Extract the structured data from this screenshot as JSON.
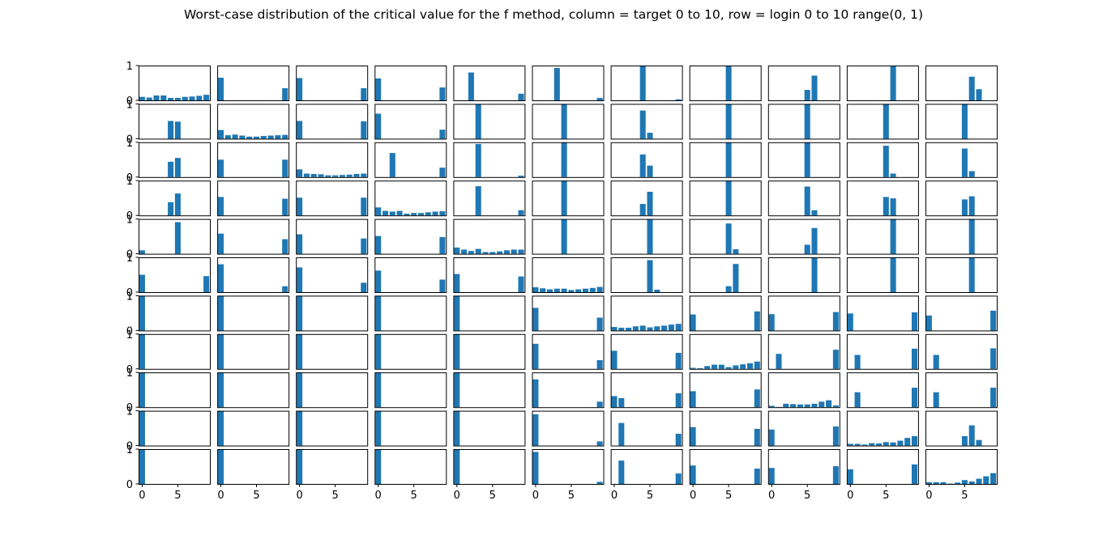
{
  "title": "Worst-case distribution of the critical value for the f method, column = target 0 to 10, row = login 0 to 10 range(0, 1)",
  "chart_data": {
    "type": "bar",
    "layout": "small-multiples grid (11 rows x 11 columns)",
    "bar_color": "#1f77b4",
    "frame_color": "#000000",
    "x_categories": [
      0,
      1,
      2,
      3,
      4,
      5,
      6,
      7,
      8,
      9
    ],
    "x_ticks": [
      0,
      5
    ],
    "y_ticks": [
      0,
      1
    ],
    "ylim": [
      0,
      1
    ],
    "xlim": [
      -0.5,
      9.5
    ],
    "row_label": "login 0 to 10",
    "column_label": "target 0 to 10",
    "panels": [
      [
        [
          0.1,
          0.08,
          0.14,
          0.14,
          0.07,
          0.07,
          0.1,
          0.11,
          0.13,
          0.16
        ],
        [
          0.65,
          0,
          0,
          0,
          0,
          0,
          0,
          0,
          0,
          0.35
        ],
        [
          0.64,
          0,
          0,
          0,
          0,
          0,
          0,
          0,
          0,
          0.35
        ],
        [
          0.63,
          0,
          0,
          0,
          0,
          0,
          0,
          0,
          0,
          0.37
        ],
        [
          0,
          0,
          0.8,
          0,
          0,
          0,
          0,
          0,
          0,
          0.19
        ],
        [
          0,
          0,
          0,
          0.93,
          0,
          0,
          0,
          0,
          0,
          0.07
        ],
        [
          0,
          0,
          0,
          0,
          1.0,
          0,
          0,
          0,
          0,
          0.03
        ],
        [
          0,
          0,
          0,
          0,
          0,
          1.0,
          0,
          0,
          0,
          0
        ],
        [
          0,
          0,
          0,
          0,
          0,
          0.3,
          0.71,
          0,
          0,
          0
        ],
        [
          0,
          0,
          0,
          0,
          0,
          0,
          1.0,
          0,
          0,
          0
        ],
        [
          0,
          0,
          0,
          0,
          0,
          0,
          0.68,
          0.32,
          0,
          0
        ]
      ],
      [
        [
          0,
          0,
          0,
          0,
          0.51,
          0.49,
          0,
          0,
          0,
          0
        ],
        [
          0.25,
          0.1,
          0.12,
          0.09,
          0.06,
          0.06,
          0.08,
          0.09,
          0.1,
          0.11
        ],
        [
          0.51,
          0,
          0,
          0,
          0,
          0,
          0,
          0,
          0,
          0.5
        ],
        [
          0.72,
          0,
          0,
          0,
          0,
          0,
          0,
          0,
          0,
          0.26
        ],
        [
          0,
          0,
          0,
          1.0,
          0,
          0,
          0,
          0,
          0,
          0
        ],
        [
          0,
          0,
          0,
          0,
          1.0,
          0,
          0,
          0,
          0,
          0
        ],
        [
          0,
          0,
          0,
          0,
          0.81,
          0.17,
          0,
          0,
          0,
          0
        ],
        [
          0,
          0,
          0,
          0,
          0,
          1.0,
          0,
          0,
          0,
          0
        ],
        [
          0,
          0,
          0,
          0,
          0,
          1.0,
          0,
          0,
          0,
          0
        ],
        [
          0,
          0,
          0,
          0,
          0,
          1.0,
          0,
          0,
          0,
          0
        ],
        [
          0,
          0,
          0,
          0,
          0,
          1.0,
          0,
          0,
          0,
          0
        ]
      ],
      [
        [
          0,
          0,
          0,
          0,
          0.44,
          0.55,
          0,
          0,
          0,
          0
        ],
        [
          0.5,
          0,
          0,
          0,
          0,
          0,
          0,
          0,
          0,
          0.5
        ],
        [
          0.22,
          0.1,
          0.09,
          0.08,
          0.05,
          0.05,
          0.06,
          0.07,
          0.09,
          0.1
        ],
        [
          0,
          0,
          0.69,
          0,
          0,
          0,
          0,
          0,
          0,
          0.27
        ],
        [
          0,
          0,
          0,
          0.95,
          0,
          0,
          0,
          0,
          0,
          0.04
        ],
        [
          0,
          0,
          0,
          0,
          1.0,
          0,
          0,
          0,
          0,
          0
        ],
        [
          0,
          0,
          0,
          0,
          0.65,
          0.33,
          0,
          0,
          0,
          0
        ],
        [
          0,
          0,
          0,
          0,
          0,
          1.0,
          0,
          0,
          0,
          0
        ],
        [
          0,
          0,
          0,
          0,
          0,
          1.0,
          0,
          0,
          0,
          0
        ],
        [
          0,
          0,
          0,
          0,
          0,
          0.9,
          0.1,
          0,
          0,
          0
        ],
        [
          0,
          0,
          0,
          0,
          0,
          0.82,
          0.17,
          0,
          0,
          0
        ]
      ],
      [
        [
          0,
          0,
          0,
          0,
          0.38,
          0.63,
          0,
          0,
          0,
          0
        ],
        [
          0.53,
          0,
          0,
          0,
          0,
          0,
          0,
          0,
          0,
          0.48
        ],
        [
          0.51,
          0,
          0,
          0,
          0,
          0,
          0,
          0,
          0,
          0.51
        ],
        [
          0.23,
          0.13,
          0.11,
          0.13,
          0.05,
          0.07,
          0.07,
          0.09,
          0.11,
          0.12
        ],
        [
          0,
          0,
          0,
          0.84,
          0,
          0,
          0,
          0,
          0,
          0.15
        ],
        [
          0,
          0,
          0,
          0,
          1.0,
          0,
          0,
          0,
          0,
          0
        ],
        [
          0,
          0,
          0,
          0,
          0.33,
          0.68,
          0,
          0,
          0,
          0
        ],
        [
          0,
          0,
          0,
          0,
          0,
          1.0,
          0,
          0,
          0,
          0
        ],
        [
          0,
          0,
          0,
          0,
          0,
          0.83,
          0.15,
          0,
          0,
          0
        ],
        [
          0,
          0,
          0,
          0,
          0,
          0.53,
          0.49,
          0,
          0,
          0
        ],
        [
          0,
          0,
          0,
          0,
          0,
          0.46,
          0.55,
          0,
          0,
          0
        ]
      ],
      [
        [
          0.1,
          0,
          0,
          0,
          0,
          0.91,
          0,
          0,
          0,
          0
        ],
        [
          0.58,
          0,
          0,
          0,
          0,
          0,
          0,
          0,
          0,
          0.42
        ],
        [
          0.56,
          0,
          0,
          0,
          0,
          0,
          0,
          0,
          0,
          0.44
        ],
        [
          0.51,
          0,
          0,
          0,
          0,
          0,
          0,
          0,
          0,
          0.48
        ],
        [
          0.18,
          0.12,
          0.08,
          0.14,
          0.05,
          0.05,
          0.07,
          0.1,
          0.12,
          0.12
        ],
        [
          0,
          0,
          0,
          0,
          1.0,
          0,
          0,
          0,
          0,
          0
        ],
        [
          0,
          0,
          0,
          0,
          0,
          1.0,
          0,
          0,
          0,
          0
        ],
        [
          0,
          0,
          0,
          0,
          0,
          0.87,
          0.13,
          0,
          0,
          0
        ],
        [
          0,
          0,
          0,
          0,
          0,
          0.26,
          0.74,
          0,
          0,
          0
        ],
        [
          0,
          0,
          0,
          0,
          0,
          0,
          1.0,
          0,
          0,
          0
        ],
        [
          0,
          0,
          0,
          0,
          0,
          0,
          1.0,
          0,
          0,
          0
        ]
      ],
      [
        [
          0.5,
          0,
          0,
          0,
          0,
          0,
          0,
          0,
          0,
          0.46
        ],
        [
          0.8,
          0,
          0,
          0,
          0,
          0,
          0,
          0,
          0,
          0.17
        ],
        [
          0.71,
          0,
          0,
          0,
          0,
          0,
          0,
          0,
          0,
          0.27
        ],
        [
          0.62,
          0,
          0,
          0,
          0,
          0,
          0,
          0,
          0,
          0.36
        ],
        [
          0.52,
          0,
          0,
          0,
          0,
          0,
          0,
          0,
          0,
          0.45
        ],
        [
          0.14,
          0.11,
          0.08,
          0.1,
          0.1,
          0.06,
          0.08,
          0.1,
          0.12,
          0.15
        ],
        [
          0,
          0,
          0,
          0,
          0,
          0.92,
          0.07,
          0,
          0,
          0
        ],
        [
          0,
          0,
          0,
          0,
          0,
          0.17,
          0.81,
          0,
          0,
          0
        ],
        [
          0,
          0,
          0,
          0,
          0,
          0,
          1.0,
          0,
          0,
          0
        ],
        [
          0,
          0,
          0,
          0,
          0,
          0,
          1.0,
          0,
          0,
          0
        ],
        [
          0,
          0,
          0,
          0,
          0,
          0,
          1.0,
          0,
          0,
          0
        ]
      ],
      [
        [
          1.0,
          0,
          0,
          0,
          0,
          0,
          0,
          0,
          0,
          0
        ],
        [
          1.0,
          0,
          0,
          0,
          0,
          0,
          0,
          0,
          0,
          0
        ],
        [
          1.0,
          0,
          0,
          0,
          0,
          0,
          0,
          0,
          0,
          0
        ],
        [
          1.0,
          0,
          0,
          0,
          0,
          0,
          0,
          0,
          0,
          0
        ],
        [
          1.0,
          0,
          0,
          0,
          0,
          0,
          0,
          0,
          0,
          0
        ],
        [
          0.65,
          0,
          0,
          0,
          0,
          0,
          0,
          0,
          0,
          0.37
        ],
        [
          0.1,
          0.08,
          0.08,
          0.12,
          0.14,
          0.09,
          0.12,
          0.14,
          0.17,
          0.19
        ],
        [
          0.46,
          0,
          0,
          0,
          0,
          0,
          0,
          0,
          0,
          0.55
        ],
        [
          0.47,
          0,
          0,
          0,
          0,
          0,
          0,
          0,
          0,
          0.53
        ],
        [
          0.49,
          0,
          0,
          0,
          0,
          0,
          0,
          0,
          0,
          0.52
        ],
        [
          0.43,
          0,
          0,
          0,
          0,
          0,
          0,
          0,
          0,
          0.57
        ]
      ],
      [
        [
          1.0,
          0,
          0,
          0,
          0,
          0,
          0,
          0,
          0,
          0
        ],
        [
          1.0,
          0,
          0,
          0,
          0,
          0,
          0,
          0,
          0,
          0
        ],
        [
          1.0,
          0,
          0,
          0,
          0,
          0,
          0,
          0,
          0,
          0
        ],
        [
          1.0,
          0,
          0,
          0,
          0,
          0,
          0,
          0,
          0,
          0
        ],
        [
          1.0,
          0,
          0,
          0,
          0,
          0,
          0,
          0,
          0,
          0
        ],
        [
          0.72,
          0,
          0,
          0,
          0,
          0,
          0,
          0,
          0,
          0.25
        ],
        [
          0.52,
          0,
          0,
          0,
          0,
          0,
          0,
          0,
          0,
          0.46
        ],
        [
          0.03,
          0.02,
          0.08,
          0.12,
          0.12,
          0.05,
          0.1,
          0.13,
          0.16,
          0.21
        ],
        [
          0,
          0.43,
          0,
          0,
          0,
          0,
          0,
          0,
          0,
          0.55
        ],
        [
          0,
          0.4,
          0,
          0,
          0,
          0,
          0,
          0,
          0,
          0.58
        ],
        [
          0,
          0.4,
          0,
          0,
          0,
          0,
          0,
          0,
          0,
          0.59
        ]
      ],
      [
        [
          1.0,
          0,
          0,
          0,
          0,
          0,
          0,
          0,
          0,
          0
        ],
        [
          1.0,
          0,
          0,
          0,
          0,
          0,
          0,
          0,
          0,
          0
        ],
        [
          1.0,
          0,
          0,
          0,
          0,
          0,
          0,
          0,
          0,
          0
        ],
        [
          1.0,
          0,
          0,
          0,
          0,
          0,
          0,
          0,
          0,
          0
        ],
        [
          1.0,
          0,
          0,
          0,
          0,
          0,
          0,
          0,
          0,
          0
        ],
        [
          0.8,
          0,
          0,
          0,
          0,
          0,
          0,
          0,
          0,
          0.16
        ],
        [
          0.32,
          0.26,
          0,
          0,
          0,
          0,
          0,
          0,
          0,
          0.4
        ],
        [
          0.46,
          0,
          0,
          0,
          0,
          0,
          0,
          0,
          0,
          0.51
        ],
        [
          0.04,
          0.01,
          0.1,
          0.09,
          0.08,
          0.08,
          0.1,
          0.16,
          0.2,
          0.05
        ],
        [
          0,
          0.43,
          0,
          0,
          0,
          0,
          0,
          0,
          0,
          0.56
        ],
        [
          0,
          0.43,
          0,
          0,
          0,
          0,
          0,
          0,
          0,
          0.56
        ]
      ],
      [
        [
          1.0,
          0,
          0,
          0,
          0,
          0,
          0,
          0,
          0,
          0
        ],
        [
          1.0,
          0,
          0,
          0,
          0,
          0,
          0,
          0,
          0,
          0
        ],
        [
          1.0,
          0,
          0,
          0,
          0,
          0,
          0,
          0,
          0,
          0
        ],
        [
          1.0,
          0,
          0,
          0,
          0,
          0,
          0,
          0,
          0,
          0
        ],
        [
          1.0,
          0,
          0,
          0,
          0,
          0,
          0,
          0,
          0,
          0
        ],
        [
          0.9,
          0,
          0,
          0,
          0,
          0,
          0,
          0,
          0,
          0.12
        ],
        [
          0,
          0.65,
          0,
          0,
          0,
          0,
          0,
          0,
          0,
          0.34
        ],
        [
          0.53,
          0,
          0,
          0,
          0,
          0,
          0,
          0,
          0,
          0.48
        ],
        [
          0.46,
          0,
          0,
          0,
          0,
          0,
          0,
          0,
          0,
          0.55
        ],
        [
          0.05,
          0.05,
          0.03,
          0.07,
          0.06,
          0.1,
          0.09,
          0.14,
          0.22,
          0.27
        ],
        [
          0,
          0,
          0,
          0,
          0,
          0.27,
          0.58,
          0.16,
          0,
          0
        ]
      ],
      [
        [
          1.0,
          0,
          0,
          0,
          0,
          0,
          0,
          0,
          0,
          0
        ],
        [
          1.0,
          0,
          0,
          0,
          0,
          0,
          0,
          0,
          0,
          0
        ],
        [
          1.0,
          0,
          0,
          0,
          0,
          0,
          0,
          0,
          0,
          0
        ],
        [
          1.0,
          0,
          0,
          0,
          0,
          0,
          0,
          0,
          0,
          0
        ],
        [
          1.0,
          0,
          0,
          0,
          0,
          0,
          0,
          0,
          0,
          0
        ],
        [
          0.92,
          0,
          0,
          0,
          0,
          0,
          0,
          0,
          0,
          0.06
        ],
        [
          0,
          0.67,
          0,
          0,
          0,
          0,
          0,
          0,
          0,
          0.3
        ],
        [
          0.53,
          0,
          0,
          0,
          0,
          0,
          0,
          0,
          0,
          0.44
        ],
        [
          0.46,
          0,
          0,
          0,
          0,
          0,
          0,
          0,
          0,
          0.51
        ],
        [
          0.42,
          0,
          0,
          0,
          0,
          0,
          0,
          0,
          0,
          0.56
        ],
        [
          0.05,
          0.05,
          0.05,
          0.01,
          0.04,
          0.11,
          0.07,
          0.15,
          0.22,
          0.31
        ]
      ]
    ]
  }
}
